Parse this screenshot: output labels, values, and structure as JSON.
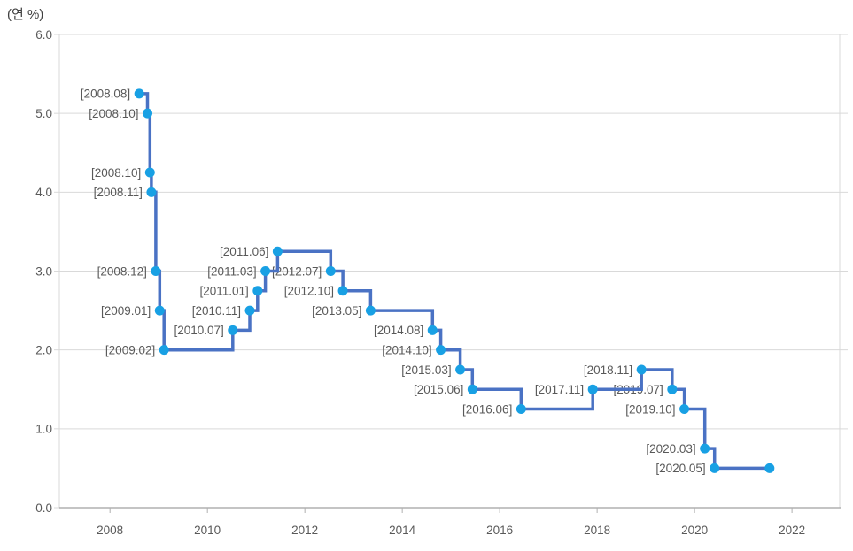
{
  "header": {
    "unit_label": "(연 %)"
  },
  "chart_data": {
    "type": "line",
    "step": "after",
    "title": "(연 %)",
    "xlabel": "",
    "ylabel": "(연 %)",
    "legend": "none",
    "grid": "horizontal",
    "x_axis": {
      "range": [
        2006.96,
        2022.98
      ],
      "tick_values": [
        2008,
        2010,
        2012,
        2014,
        2016,
        2018,
        2020,
        2022
      ],
      "tick_labels": [
        "2008",
        "2010",
        "2012",
        "2014",
        "2016",
        "2018",
        "2020",
        "2022"
      ]
    },
    "y_axis": {
      "range": [
        0,
        6
      ],
      "tick_values": [
        0,
        1,
        2,
        3,
        4,
        5,
        6
      ],
      "tick_labels": [
        "0.0",
        "1.0",
        "2.0",
        "3.0",
        "4.0",
        "5.0",
        "6.0"
      ]
    },
    "points": [
      {
        "label": "[2008.08]",
        "date": 2008.6,
        "rate": 5.25
      },
      {
        "label": "[2008.10]",
        "date": 2008.77,
        "rate": 5.0
      },
      {
        "label": "[2008.10]",
        "date": 2008.82,
        "rate": 4.25
      },
      {
        "label": "[2008.11]",
        "date": 2008.85,
        "rate": 4.0
      },
      {
        "label": "[2008.12]",
        "date": 2008.94,
        "rate": 3.0
      },
      {
        "label": "[2009.01]",
        "date": 2009.02,
        "rate": 2.5
      },
      {
        "label": "[2009.02]",
        "date": 2009.11,
        "rate": 2.0
      },
      {
        "label": "[2010.07]",
        "date": 2010.52,
        "rate": 2.25
      },
      {
        "label": "[2010.11]",
        "date": 2010.87,
        "rate": 2.5
      },
      {
        "label": "[2011.01]",
        "date": 2011.03,
        "rate": 2.75
      },
      {
        "label": "[2011.03]",
        "date": 2011.19,
        "rate": 3.0
      },
      {
        "label": "[2011.06]",
        "date": 2011.44,
        "rate": 3.25
      },
      {
        "label": "[2012.07]",
        "date": 2012.53,
        "rate": 3.0
      },
      {
        "label": "[2012.10]",
        "date": 2012.78,
        "rate": 2.75
      },
      {
        "label": "[2013.05]",
        "date": 2013.35,
        "rate": 2.5
      },
      {
        "label": "[2014.08]",
        "date": 2014.62,
        "rate": 2.25
      },
      {
        "label": "[2014.10]",
        "date": 2014.79,
        "rate": 2.0
      },
      {
        "label": "[2015.03]",
        "date": 2015.19,
        "rate": 1.75
      },
      {
        "label": "[2015.06]",
        "date": 2015.44,
        "rate": 1.5
      },
      {
        "label": "[2016.06]",
        "date": 2016.44,
        "rate": 1.25
      },
      {
        "label": "[2017.11]",
        "date": 2017.91,
        "rate": 1.5
      },
      {
        "label": "[2018.11]",
        "date": 2018.91,
        "rate": 1.75
      },
      {
        "label": "[2019.07]",
        "date": 2019.54,
        "rate": 1.5
      },
      {
        "label": "[2019.10]",
        "date": 2019.79,
        "rate": 1.25
      },
      {
        "label": "[2020.03]",
        "date": 2020.21,
        "rate": 0.75
      },
      {
        "label": "[2020.05]",
        "date": 2020.41,
        "rate": 0.5
      },
      {
        "label": "",
        "date": 2021.54,
        "rate": 0.5
      }
    ],
    "colors": {
      "line": "#4a72c4",
      "marker": "#18a0e4",
      "grid": "#d9d9d9",
      "axis": "#b0b0b0",
      "border": "#d9d9d9",
      "text": "#595959",
      "title_text": "#404040",
      "background": "#ffffff"
    }
  }
}
